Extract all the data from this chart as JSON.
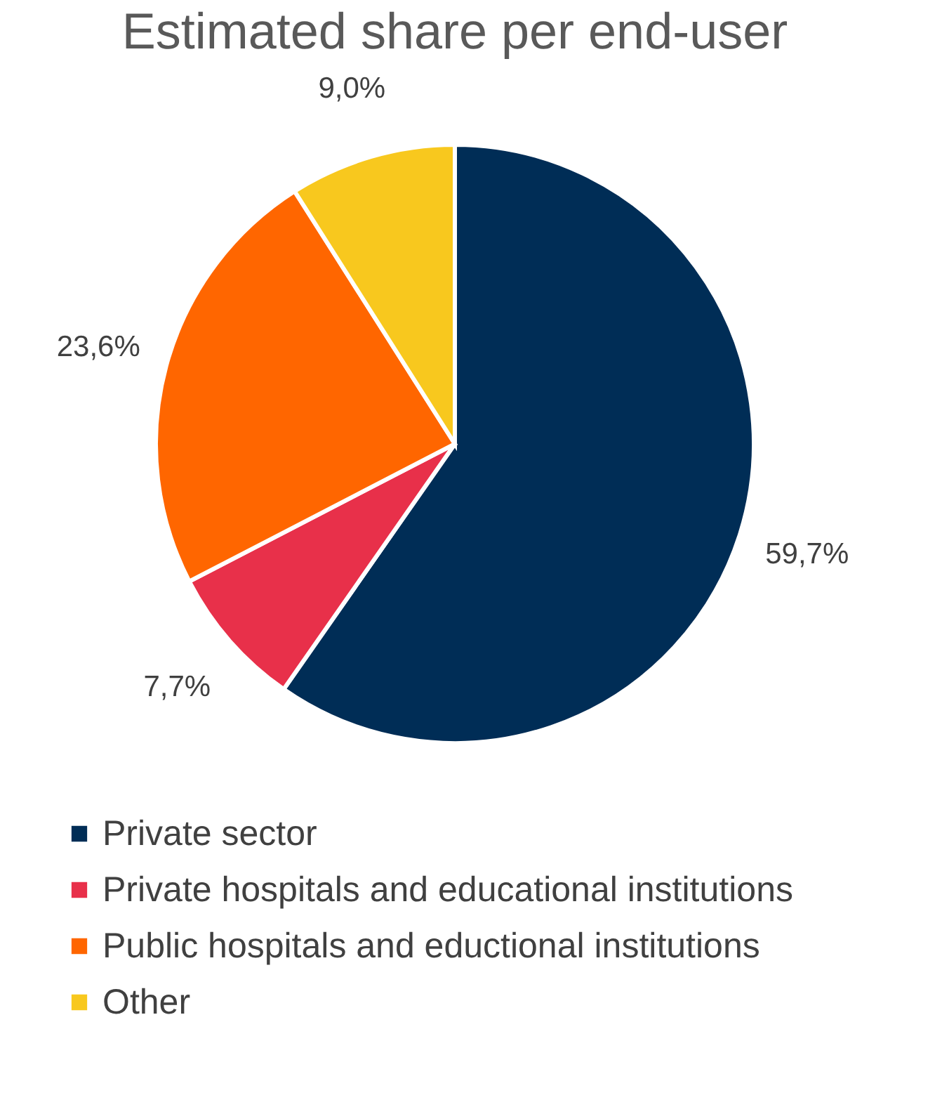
{
  "chart_data": {
    "type": "pie",
    "title": "Estimated share per end-user",
    "categories": [
      "Private sector",
      "Private hospitals and educational institutions",
      "Public hospitals and eductional institutions",
      "Other"
    ],
    "values": [
      59.7,
      7.7,
      23.6,
      9.0
    ],
    "value_labels": [
      "59,7%",
      "7,7%",
      "23,6%",
      "9,0%"
    ],
    "colors": [
      "#002d56",
      "#e8304a",
      "#ff6600",
      "#f8c81e"
    ],
    "legend": "bottom"
  }
}
